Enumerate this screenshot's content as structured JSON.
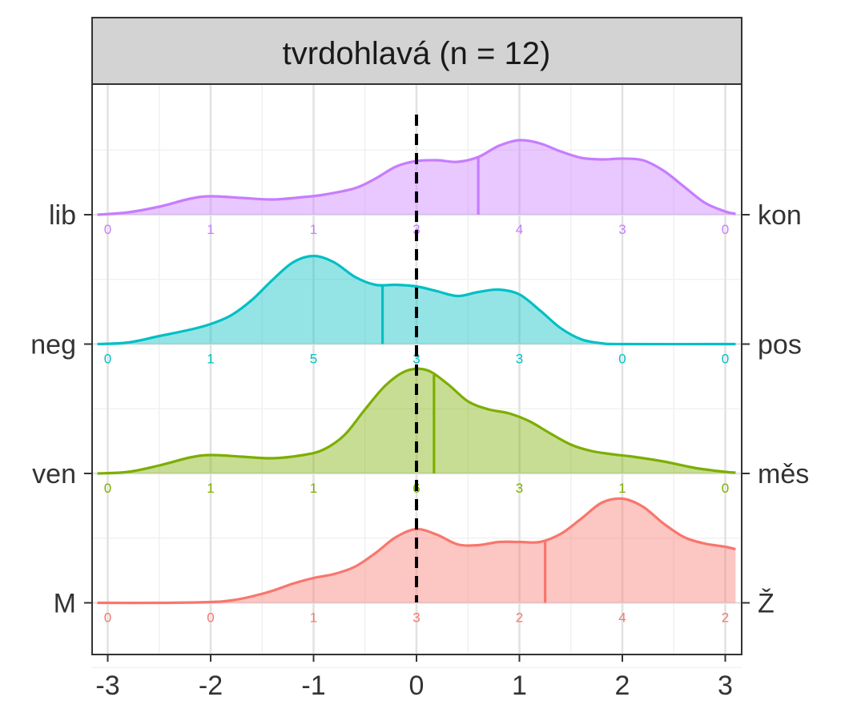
{
  "chart_data": {
    "type": "ridgeline-density",
    "title": "tvrdohlavá (n = 12)",
    "xlim": [
      -3,
      3
    ],
    "x_ticks": [
      "-3",
      "-2",
      "-1",
      "0",
      "1",
      "2",
      "3"
    ],
    "grid": true,
    "reference_line_x": 0,
    "series": [
      {
        "left_label": "lib",
        "right_label": "kon",
        "color": "#C77CFF",
        "mean": 0.6,
        "counts": [
          0,
          1,
          1,
          3,
          4,
          3,
          0
        ],
        "density": [
          [
            -3.1,
            0
          ],
          [
            -2.8,
            0.03
          ],
          [
            -2.5,
            0.1
          ],
          [
            -2.2,
            0.2
          ],
          [
            -2.0,
            0.23
          ],
          [
            -1.7,
            0.21
          ],
          [
            -1.4,
            0.19
          ],
          [
            -1.1,
            0.22
          ],
          [
            -0.9,
            0.25
          ],
          [
            -0.6,
            0.33
          ],
          [
            -0.4,
            0.45
          ],
          [
            -0.2,
            0.6
          ],
          [
            0.0,
            0.67
          ],
          [
            0.2,
            0.68
          ],
          [
            0.4,
            0.66
          ],
          [
            0.6,
            0.72
          ],
          [
            0.8,
            0.86
          ],
          [
            1.0,
            0.93
          ],
          [
            1.2,
            0.89
          ],
          [
            1.4,
            0.79
          ],
          [
            1.6,
            0.71
          ],
          [
            1.8,
            0.69
          ],
          [
            2.0,
            0.7
          ],
          [
            2.2,
            0.68
          ],
          [
            2.4,
            0.55
          ],
          [
            2.6,
            0.35
          ],
          [
            2.8,
            0.15
          ],
          [
            3.0,
            0.04
          ],
          [
            3.1,
            0.01
          ]
        ]
      },
      {
        "left_label": "neg",
        "right_label": "pos",
        "color": "#00BFC4",
        "mean": -0.33,
        "counts": [
          0,
          1,
          5,
          3,
          3,
          0,
          0
        ],
        "density": [
          [
            -3.1,
            0
          ],
          [
            -2.8,
            0.02
          ],
          [
            -2.5,
            0.1
          ],
          [
            -2.2,
            0.18
          ],
          [
            -2.0,
            0.25
          ],
          [
            -1.8,
            0.36
          ],
          [
            -1.6,
            0.55
          ],
          [
            -1.4,
            0.8
          ],
          [
            -1.2,
            1.02
          ],
          [
            -1.0,
            1.1
          ],
          [
            -0.8,
            1.02
          ],
          [
            -0.6,
            0.84
          ],
          [
            -0.4,
            0.74
          ],
          [
            -0.2,
            0.74
          ],
          [
            0.0,
            0.72
          ],
          [
            0.2,
            0.66
          ],
          [
            0.4,
            0.6
          ],
          [
            0.6,
            0.65
          ],
          [
            0.8,
            0.68
          ],
          [
            1.0,
            0.62
          ],
          [
            1.2,
            0.42
          ],
          [
            1.4,
            0.2
          ],
          [
            1.6,
            0.06
          ],
          [
            1.8,
            0.01
          ],
          [
            2.0,
            0
          ],
          [
            3.1,
            0
          ]
        ]
      },
      {
        "left_label": "ven",
        "right_label": "měs",
        "color": "#7CAE00",
        "mean": 0.17,
        "counts": [
          0,
          1,
          1,
          6,
          3,
          1,
          0
        ],
        "density": [
          [
            -3.1,
            0
          ],
          [
            -2.8,
            0.02
          ],
          [
            -2.5,
            0.1
          ],
          [
            -2.2,
            0.2
          ],
          [
            -2.0,
            0.23
          ],
          [
            -1.7,
            0.21
          ],
          [
            -1.4,
            0.19
          ],
          [
            -1.1,
            0.23
          ],
          [
            -0.9,
            0.3
          ],
          [
            -0.7,
            0.48
          ],
          [
            -0.5,
            0.8
          ],
          [
            -0.3,
            1.1
          ],
          [
            -0.1,
            1.28
          ],
          [
            0.1,
            1.29
          ],
          [
            0.3,
            1.12
          ],
          [
            0.5,
            0.9
          ],
          [
            0.7,
            0.8
          ],
          [
            0.9,
            0.75
          ],
          [
            1.1,
            0.65
          ],
          [
            1.3,
            0.5
          ],
          [
            1.5,
            0.36
          ],
          [
            1.7,
            0.28
          ],
          [
            1.9,
            0.24
          ],
          [
            2.1,
            0.21
          ],
          [
            2.4,
            0.15
          ],
          [
            2.7,
            0.07
          ],
          [
            3.0,
            0.02
          ],
          [
            3.1,
            0.01
          ]
        ]
      },
      {
        "left_label": "M",
        "right_label": "Ž",
        "color": "#F8766D",
        "mean": 1.25,
        "counts": [
          0,
          0,
          1,
          3,
          2,
          4,
          2
        ],
        "density": [
          [
            -3.1,
            0
          ],
          [
            -2.5,
            0
          ],
          [
            -2.0,
            0.01
          ],
          [
            -1.8,
            0.03
          ],
          [
            -1.6,
            0.08
          ],
          [
            -1.4,
            0.15
          ],
          [
            -1.2,
            0.24
          ],
          [
            -1.0,
            0.31
          ],
          [
            -0.8,
            0.36
          ],
          [
            -0.6,
            0.45
          ],
          [
            -0.4,
            0.62
          ],
          [
            -0.2,
            0.82
          ],
          [
            0.0,
            0.92
          ],
          [
            0.2,
            0.85
          ],
          [
            0.4,
            0.73
          ],
          [
            0.6,
            0.72
          ],
          [
            0.8,
            0.76
          ],
          [
            1.0,
            0.76
          ],
          [
            1.2,
            0.76
          ],
          [
            1.4,
            0.86
          ],
          [
            1.6,
            1.05
          ],
          [
            1.8,
            1.25
          ],
          [
            2.0,
            1.3
          ],
          [
            2.2,
            1.2
          ],
          [
            2.4,
            0.99
          ],
          [
            2.6,
            0.82
          ],
          [
            2.8,
            0.74
          ],
          [
            3.0,
            0.7
          ],
          [
            3.1,
            0.67
          ]
        ]
      }
    ]
  }
}
